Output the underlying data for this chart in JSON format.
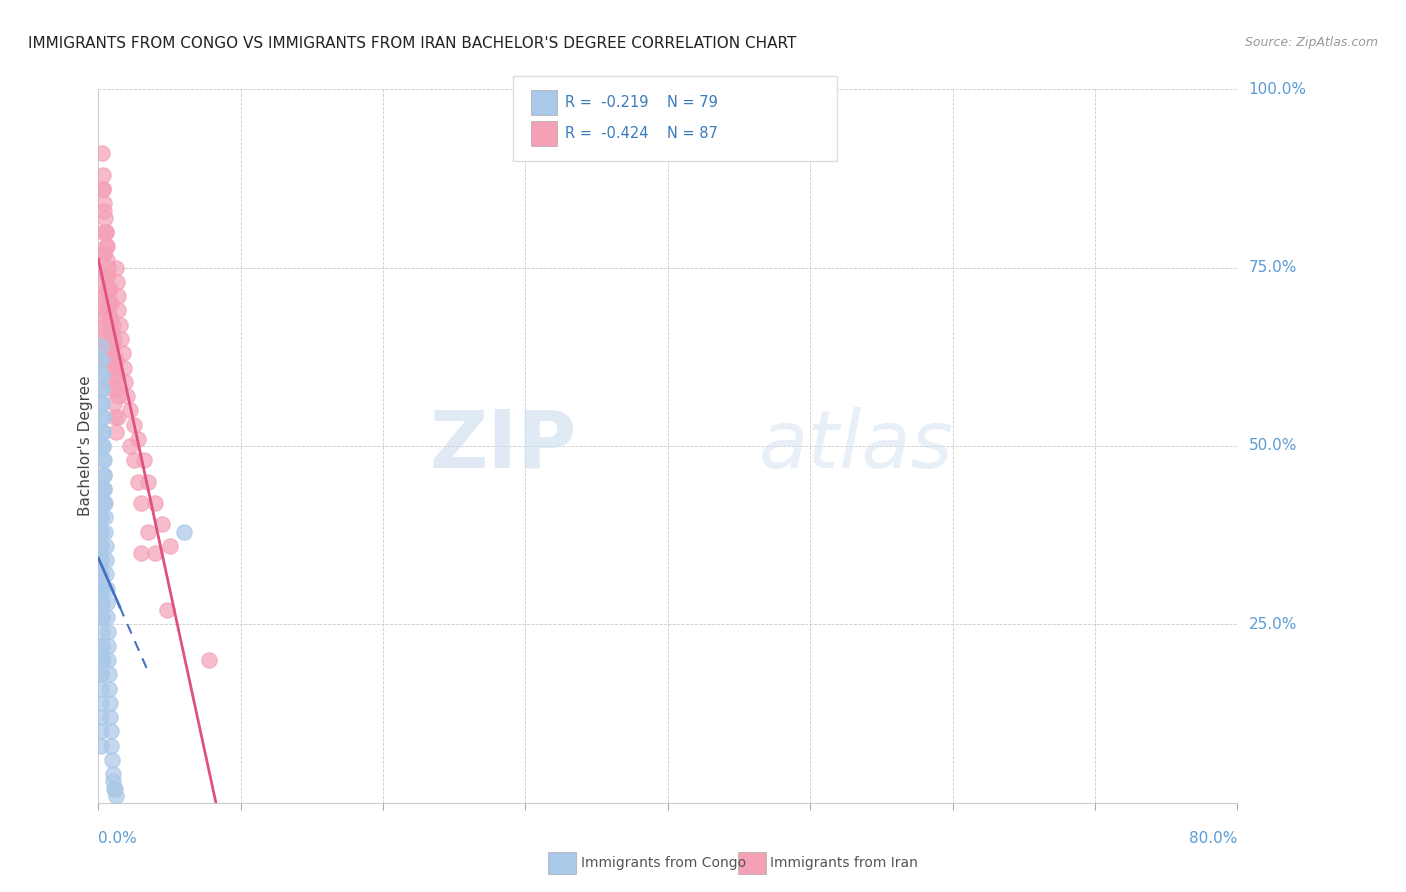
{
  "title": "IMMIGRANTS FROM CONGO VS IMMIGRANTS FROM IRAN BACHELOR'S DEGREE CORRELATION CHART",
  "source": "Source: ZipAtlas.com",
  "ylabel": "Bachelor's Degree",
  "xlim": [
    0.0,
    80.0
  ],
  "ylim": [
    0.0,
    100.0
  ],
  "congo": {
    "R": -0.219,
    "N": 79,
    "color": "#aac8e8",
    "line_color": "#4472c4",
    "x": [
      0.18,
      0.2,
      0.22,
      0.25,
      0.28,
      0.3,
      0.32,
      0.35,
      0.38,
      0.4,
      0.42,
      0.45,
      0.48,
      0.5,
      0.52,
      0.55,
      0.58,
      0.6,
      0.62,
      0.65,
      0.68,
      0.7,
      0.72,
      0.75,
      0.78,
      0.8,
      0.85,
      0.9,
      0.95,
      1.0,
      1.05,
      1.1,
      1.15,
      1.2,
      0.18,
      0.2,
      0.22,
      0.25,
      0.28,
      0.3,
      0.32,
      0.35,
      0.38,
      0.4,
      0.42,
      0.45,
      0.18,
      0.2,
      0.22,
      0.25,
      0.28,
      0.3,
      0.18,
      0.2,
      0.22,
      0.25,
      0.18,
      0.2,
      0.22,
      0.18,
      0.2,
      0.18,
      0.2,
      0.18,
      0.2,
      0.18,
      0.2,
      0.18,
      0.18,
      0.18,
      0.18,
      0.18,
      0.18,
      0.18,
      0.18,
      6.0,
      0.18,
      0.18,
      0.18
    ],
    "y": [
      62,
      60,
      58,
      56,
      54,
      52,
      50,
      48,
      46,
      44,
      42,
      40,
      38,
      36,
      34,
      32,
      30,
      28,
      26,
      24,
      22,
      20,
      18,
      16,
      14,
      12,
      10,
      8,
      6,
      4,
      3,
      2,
      2,
      1,
      64,
      62,
      60,
      58,
      56,
      54,
      52,
      50,
      48,
      46,
      44,
      42,
      30,
      28,
      26,
      24,
      22,
      20,
      32,
      30,
      28,
      26,
      34,
      32,
      30,
      36,
      34,
      38,
      36,
      40,
      38,
      42,
      40,
      44,
      20,
      18,
      16,
      14,
      12,
      10,
      8,
      38,
      22,
      20,
      18
    ]
  },
  "iran": {
    "R": -0.424,
    "N": 87,
    "color": "#f4a0b5",
    "line_color": "#e05080",
    "x": [
      0.25,
      0.3,
      0.35,
      0.4,
      0.45,
      0.5,
      0.55,
      0.6,
      0.65,
      0.7,
      0.75,
      0.8,
      0.85,
      0.9,
      0.95,
      1.0,
      1.05,
      1.1,
      1.15,
      1.2,
      1.25,
      1.3,
      1.35,
      1.4,
      1.5,
      1.6,
      1.7,
      1.8,
      1.9,
      2.0,
      2.2,
      2.5,
      2.8,
      3.2,
      3.5,
      4.0,
      4.5,
      5.0,
      0.3,
      0.4,
      0.5,
      0.6,
      0.7,
      0.8,
      0.9,
      1.0,
      1.1,
      1.2,
      1.3,
      1.4,
      0.3,
      0.4,
      0.5,
      0.6,
      0.7,
      0.8,
      0.9,
      1.0,
      0.3,
      0.4,
      0.5,
      0.6,
      0.7,
      0.3,
      0.4,
      0.5,
      0.6,
      0.3,
      0.4,
      0.5,
      0.3,
      0.4,
      4.8,
      7.8,
      2.5,
      2.8,
      3.0,
      3.5,
      4.0,
      0.4,
      0.6,
      0.8,
      1.0,
      3.0,
      2.2,
      1.2,
      1.4
    ],
    "y": [
      91,
      88,
      86,
      84,
      82,
      80,
      78,
      76,
      74,
      72,
      70,
      68,
      66,
      64,
      62,
      60,
      58,
      56,
      54,
      52,
      75,
      73,
      71,
      69,
      67,
      65,
      63,
      61,
      59,
      57,
      55,
      53,
      51,
      48,
      45,
      42,
      39,
      36,
      86,
      83,
      80,
      78,
      75,
      72,
      70,
      67,
      65,
      62,
      60,
      57,
      80,
      77,
      74,
      72,
      69,
      66,
      63,
      61,
      70,
      67,
      64,
      62,
      59,
      72,
      69,
      66,
      64,
      68,
      65,
      62,
      74,
      71,
      27,
      20,
      48,
      45,
      42,
      38,
      35,
      77,
      72,
      68,
      64,
      35,
      50,
      58,
      54
    ]
  },
  "watermark_zip": "ZIP",
  "watermark_atlas": "atlas",
  "legend_r_congo": "R =  -0.219",
  "legend_n_congo": "N = 79",
  "legend_r_iran": "R =  -0.424",
  "legend_n_iran": "N = 87",
  "label_congo": "Immigrants from Congo",
  "label_iran": "Immigrants from Iran",
  "title_fontsize": 11,
  "source_text": "Source: ZipAtlas.com"
}
